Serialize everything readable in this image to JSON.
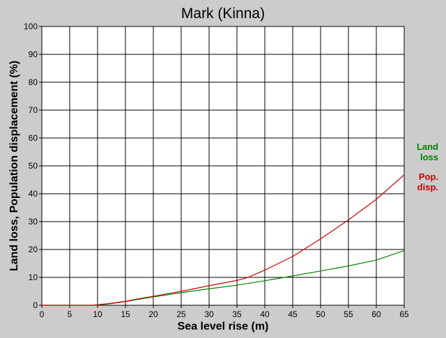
{
  "chart_data": {
    "type": "line",
    "title": "Mark (Kinna)",
    "xlabel": "Sea level rise (m)",
    "ylabel": "Land loss, Population displacement (%)",
    "xlim": [
      0,
      65
    ],
    "ylim": [
      0,
      100
    ],
    "x_ticks": [
      "0",
      "5",
      "10",
      "15",
      "20",
      "25",
      "30",
      "35",
      "40",
      "45",
      "50",
      "55",
      "60",
      "65"
    ],
    "y_ticks": [
      "0",
      "10",
      "20",
      "30",
      "40",
      "50",
      "60",
      "70",
      "80",
      "90",
      "100"
    ],
    "grid": true,
    "legend_position": "right",
    "series": [
      {
        "name": "Land loss",
        "legend_lines": [
          "Land",
          "loss"
        ],
        "color": "#008000",
        "x": [
          0,
          5,
          9,
          10,
          12,
          15,
          17,
          20,
          25,
          30,
          35,
          40,
          45,
          50,
          55,
          60,
          65
        ],
        "y": [
          0,
          0,
          0,
          0.1,
          0.5,
          1.3,
          2.0,
          3.0,
          4.5,
          5.9,
          7.2,
          8.8,
          10.5,
          12.3,
          14.1,
          16.2,
          19.6
        ]
      },
      {
        "name": "Pop. disp.",
        "legend_lines": [
          "Pop.",
          "disp."
        ],
        "color": "#cc0000",
        "x": [
          0,
          5,
          9,
          10,
          12,
          15,
          17,
          20,
          25,
          30,
          35,
          37,
          40,
          45,
          50,
          55,
          60,
          65
        ],
        "y": [
          0,
          0,
          0,
          0.2,
          0.6,
          1.4,
          2.2,
          3.2,
          5.0,
          7.0,
          8.9,
          10.0,
          12.6,
          17.5,
          23.8,
          30.6,
          38.0,
          46.8
        ]
      }
    ]
  }
}
